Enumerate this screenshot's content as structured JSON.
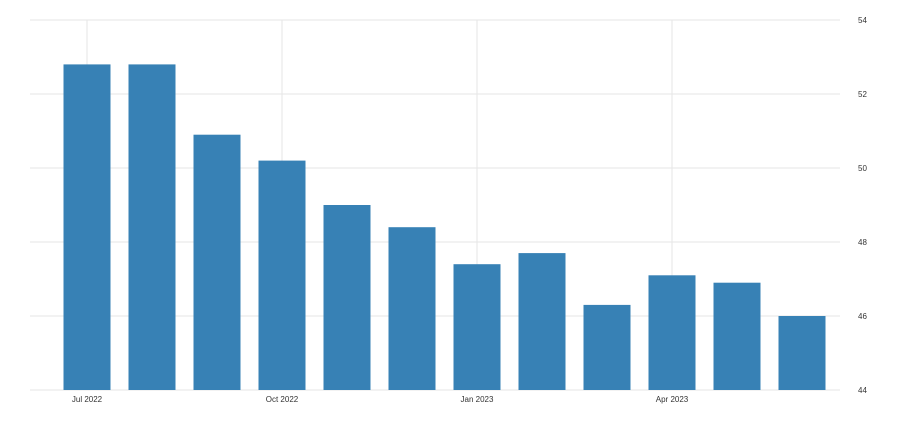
{
  "chart_data": {
    "type": "bar",
    "categories": [
      "2022-07",
      "2022-08",
      "2022-09",
      "2022-10",
      "2022-11",
      "2022-12",
      "2023-01",
      "2023-02",
      "2023-03",
      "2023-04",
      "2023-05",
      "2023-06"
    ],
    "values": [
      52.8,
      52.8,
      50.9,
      50.2,
      49.0,
      48.4,
      47.4,
      47.7,
      46.3,
      47.1,
      46.9,
      46.0
    ],
    "x_tick_labels": [
      {
        "category": "2022-07",
        "label": "Jul 2022"
      },
      {
        "category": "2022-10",
        "label": "Oct 2022"
      },
      {
        "category": "2023-01",
        "label": "Jan 2023"
      },
      {
        "category": "2023-04",
        "label": "Apr 2023"
      }
    ],
    "y_ticks": [
      44,
      46,
      48,
      50,
      52,
      54
    ],
    "ylim": [
      44,
      54
    ],
    "title": "",
    "xlabel": "",
    "ylabel": "",
    "grid": true,
    "y_axis_side": "right",
    "bar_color": "#3781b5",
    "grid_color": "#e6e6e6"
  }
}
